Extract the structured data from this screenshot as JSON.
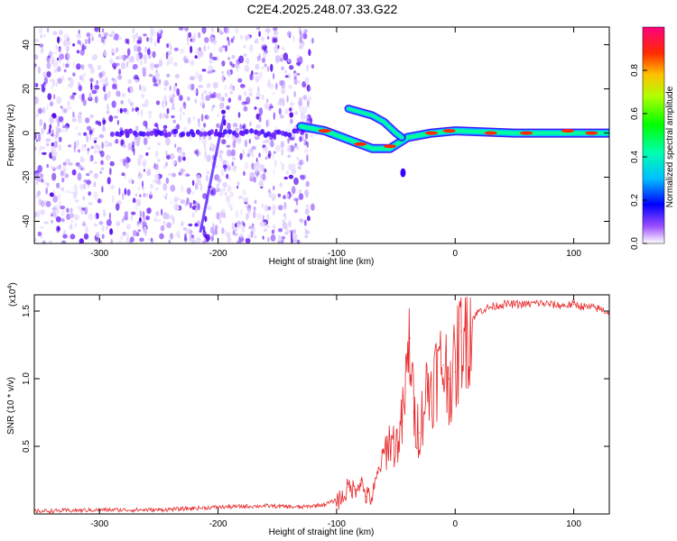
{
  "figure": {
    "title": "C2E4.2025.248.07.33.G22"
  },
  "chart_data": [
    {
      "type": "heatmap",
      "title": "C2E4.2025.248.07.33.G22",
      "xlabel": "Height of straight line (km)",
      "ylabel": "Frequency (Hz)",
      "xlim": [
        -355,
        130
      ],
      "ylim": [
        -50,
        48
      ],
      "xticks": [
        -300,
        -200,
        -100,
        0,
        100
      ],
      "yticks": [
        -40,
        -20,
        0,
        20,
        40
      ],
      "xtick_labels": [
        "-300",
        "-200",
        "-100",
        "0",
        "100"
      ],
      "ytick_labels": [
        "-40",
        "-20",
        "0",
        "20",
        "40"
      ],
      "colorbar": {
        "label": "Normalized spectral amplitude",
        "range": [
          0,
          1
        ],
        "ticks": [
          0.0,
          0.2,
          0.4,
          0.6,
          0.8
        ],
        "tick_labels": [
          "0.0",
          "0.2",
          "0.4",
          "0.6",
          "0.8"
        ]
      },
      "description_features": {
        "noise_region_x": [
          -355,
          -130
        ],
        "main_signal_track": [
          {
            "x": -280,
            "y": 0
          },
          {
            "x": -200,
            "y": 0
          },
          {
            "x": -130,
            "y": 3
          },
          {
            "x": -110,
            "y": 1
          },
          {
            "x": -90,
            "y": -3
          },
          {
            "x": -70,
            "y": -7
          },
          {
            "x": -55,
            "y": -7
          },
          {
            "x": -40,
            "y": -2
          },
          {
            "x": -20,
            "y": 0
          },
          {
            "x": 0,
            "y": 1
          },
          {
            "x": 50,
            "y": 0
          },
          {
            "x": 130,
            "y": 0
          }
        ],
        "upper_branch_track": [
          {
            "x": -90,
            "y": 11
          },
          {
            "x": -70,
            "y": 8
          },
          {
            "x": -60,
            "y": 5
          },
          {
            "x": -50,
            "y": 0
          },
          {
            "x": -45,
            "y": -2
          }
        ],
        "oblique_streak": [
          {
            "x": -215,
            "y": -45
          },
          {
            "x": -195,
            "y": 8
          }
        ]
      }
    },
    {
      "type": "line",
      "xlabel": "Height of straight line (km)",
      "ylabel": "SNR (10 * v/v)",
      "y_multiplier_label": "(x10",
      "y_multiplier_exp": "4",
      "y_multiplier_close": ")",
      "xlim": [
        -355,
        130
      ],
      "ylim": [
        0,
        1.62
      ],
      "xticks": [
        -300,
        -200,
        -100,
        0,
        100
      ],
      "yticks": [
        0.5,
        1.0,
        1.5
      ],
      "xtick_labels": [
        "-300",
        "-200",
        "-100",
        "0",
        "100"
      ],
      "ytick_labels": [
        "0.5",
        "1.0",
        "1.5"
      ],
      "color": "#e8292b",
      "series": [
        {
          "name": "SNR",
          "x": [
            -355,
            -300,
            -250,
            -200,
            -160,
            -130,
            -110,
            -95,
            -90,
            -85,
            -80,
            -75,
            -70,
            -65,
            -60,
            -55,
            -50,
            -45,
            -42,
            -38,
            -35,
            -30,
            -25,
            -20,
            -15,
            -10,
            -5,
            0,
            5,
            10,
            20,
            30,
            40,
            50,
            60,
            70,
            80,
            90,
            100,
            110,
            120,
            130
          ],
          "y": [
            0.02,
            0.03,
            0.03,
            0.05,
            0.06,
            0.05,
            0.07,
            0.12,
            0.2,
            0.18,
            0.25,
            0.13,
            0.12,
            0.3,
            0.45,
            0.55,
            0.5,
            0.65,
            0.9,
            1.3,
            0.75,
            0.6,
            0.9,
            0.95,
            1.05,
            1.1,
            1.0,
            1.05,
            1.35,
            1.4,
            1.5,
            1.53,
            1.55,
            1.55,
            1.55,
            1.56,
            1.55,
            1.54,
            1.55,
            1.53,
            1.52,
            1.49
          ]
        }
      ]
    }
  ]
}
